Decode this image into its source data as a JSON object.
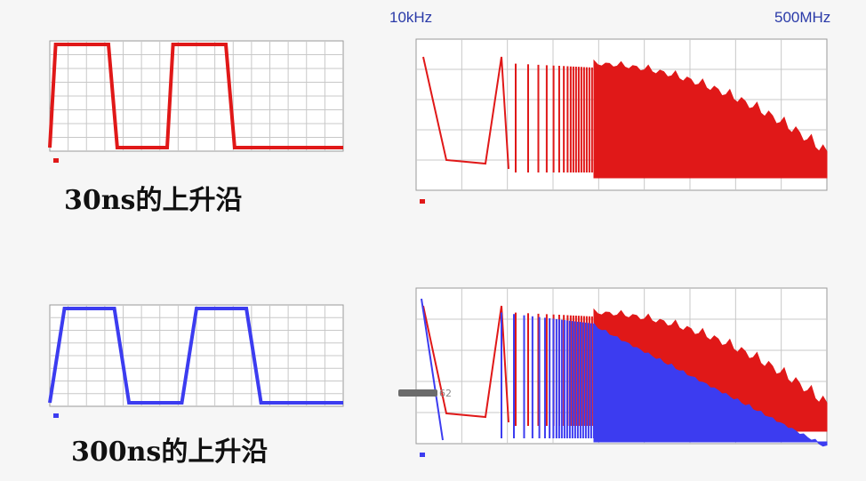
{
  "labels": {
    "top_left_freq": "10kHz",
    "top_right_freq": "500MHz",
    "caption_top": "30ns的上升沿",
    "caption_bottom": "300ns的上升沿",
    "watermark_tail": "62"
  },
  "colors": {
    "red": "#e01818",
    "blue": "#3c3cf0",
    "grid": "#c8c8c8",
    "plot_bg": "#ffffff"
  },
  "chart_data": [
    {
      "id": "time-30ns",
      "type": "line",
      "series": [
        {
          "color": "#e01818",
          "rise_time_ns": 30,
          "x": [
            0,
            0.02,
            0.2,
            0.23,
            0.4,
            0.42,
            0.6,
            0.63,
            1.0
          ],
          "y": [
            0,
            1,
            1,
            0,
            0,
            1,
            1,
            0,
            0
          ]
        }
      ],
      "grid": true
    },
    {
      "id": "spectrum-30ns",
      "type": "line",
      "xscale": "log",
      "xlim": [
        10000,
        500000000
      ],
      "grid": true,
      "series": [
        {
          "color": "#e01818",
          "envelope": "filled",
          "harmonics_dense": true
        }
      ]
    },
    {
      "id": "time-300ns",
      "type": "line",
      "series": [
        {
          "color": "#3c3cf0",
          "rise_time_ns": 300,
          "x": [
            0,
            0.05,
            0.22,
            0.27,
            0.45,
            0.5,
            0.67,
            0.72,
            1.0
          ],
          "y": [
            0,
            1,
            1,
            0,
            0,
            1,
            1,
            0,
            0
          ]
        }
      ],
      "grid": true
    },
    {
      "id": "spectrum-300ns",
      "type": "line",
      "xscale": "log",
      "xlim": [
        10000,
        500000000
      ],
      "grid": true,
      "series": [
        {
          "color": "#e01818",
          "envelope": "filled",
          "reference": "30ns"
        },
        {
          "color": "#3c3cf0",
          "envelope": "filled",
          "rolloff": "steeper"
        }
      ]
    }
  ]
}
